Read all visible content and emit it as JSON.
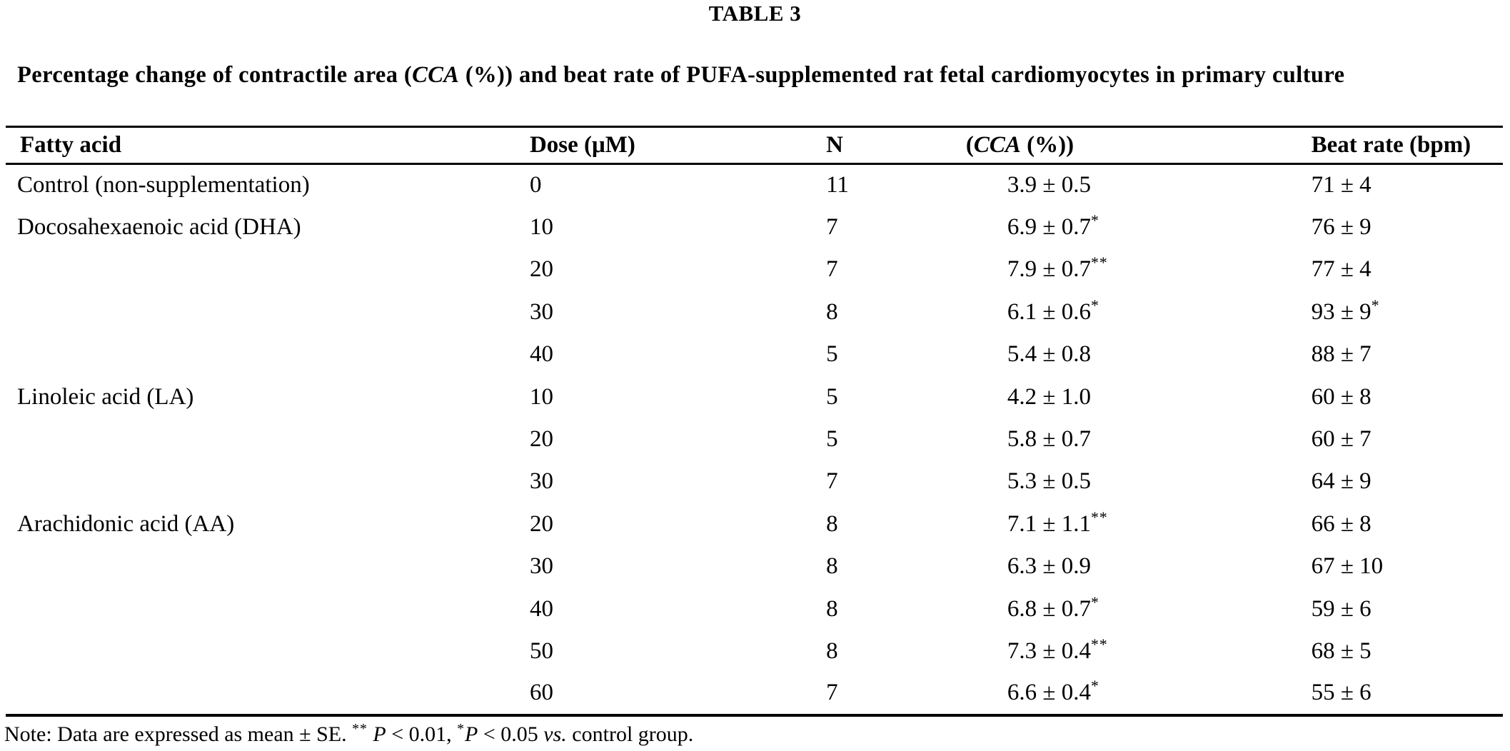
{
  "page": {
    "table_label": "TABLE 3",
    "caption": {
      "part1": "Percentage change of contractile area (",
      "abbr_italic": "CCA",
      "part2": " (%)) and beat rate of PUFA-supplemented rat fetal cardiomyocytes in primary culture"
    }
  },
  "table": {
    "headers": {
      "fatty_acid": "Fatty acid",
      "dose": "Dose (μM)",
      "n": "N",
      "cca_pre": "(",
      "cca_italic": "CCA",
      "cca_post": " (%))",
      "beat_rate": "Beat rate (bpm)"
    },
    "rows": [
      {
        "fatty_acid": "Control (non-supplementation)",
        "dose": "0",
        "n": "11",
        "cca": "3.9 ± 0.5",
        "cca_sup": "",
        "beat_rate": "71 ± 4",
        "beat_rate_sup": ""
      },
      {
        "fatty_acid": "Docosahexaenoic acid (DHA)",
        "dose": "10",
        "n": "7",
        "cca": "6.9 ± 0.7",
        "cca_sup": "*",
        "beat_rate": "76 ± 9",
        "beat_rate_sup": ""
      },
      {
        "fatty_acid": "",
        "dose": "20",
        "n": "7",
        "cca": "7.9 ± 0.7",
        "cca_sup": "**",
        "beat_rate": "77 ± 4",
        "beat_rate_sup": ""
      },
      {
        "fatty_acid": "",
        "dose": "30",
        "n": "8",
        "cca": "6.1 ± 0.6",
        "cca_sup": "*",
        "beat_rate": "93 ± 9",
        "beat_rate_sup": "*"
      },
      {
        "fatty_acid": "",
        "dose": "40",
        "n": "5",
        "cca": "5.4 ± 0.8",
        "cca_sup": "",
        "beat_rate": "88 ± 7",
        "beat_rate_sup": ""
      },
      {
        "fatty_acid": "Linoleic acid (LA)",
        "dose": "10",
        "n": "5",
        "cca": "4.2 ± 1.0",
        "cca_sup": "",
        "beat_rate": "60 ± 8",
        "beat_rate_sup": ""
      },
      {
        "fatty_acid": "",
        "dose": "20",
        "n": "5",
        "cca": "5.8 ± 0.7",
        "cca_sup": "",
        "beat_rate": "60 ± 7",
        "beat_rate_sup": ""
      },
      {
        "fatty_acid": "",
        "dose": "30",
        "n": "7",
        "cca": "5.3 ± 0.5",
        "cca_sup": "",
        "beat_rate": "64 ± 9",
        "beat_rate_sup": ""
      },
      {
        "fatty_acid": "Arachidonic acid (AA)",
        "dose": "20",
        "n": "8",
        "cca": "7.1 ± 1.1",
        "cca_sup": "**",
        "beat_rate": "66 ± 8",
        "beat_rate_sup": ""
      },
      {
        "fatty_acid": "",
        "dose": "30",
        "n": "8",
        "cca": "6.3 ± 0.9",
        "cca_sup": "",
        "beat_rate": "67 ± 10",
        "beat_rate_sup": ""
      },
      {
        "fatty_acid": "",
        "dose": "40",
        "n": "8",
        "cca": "6.8 ± 0.7",
        "cca_sup": "*",
        "beat_rate": "59 ± 6",
        "beat_rate_sup": ""
      },
      {
        "fatty_acid": "",
        "dose": "50",
        "n": "8",
        "cca": "7.3 ± 0.4",
        "cca_sup": "**",
        "beat_rate": "68 ± 5",
        "beat_rate_sup": ""
      },
      {
        "fatty_acid": "",
        "dose": "60",
        "n": "7",
        "cca": "6.6 ± 0.4",
        "cca_sup": "*",
        "beat_rate": "55 ± 6",
        "beat_rate_sup": ""
      }
    ]
  },
  "note": {
    "prefix": "Note: Data are expressed as mean ± SE. ",
    "sig_double": "**",
    "space": " ",
    "p1": "P",
    "mid1": " < 0.01, ",
    "sig_single": "*",
    "p2": "P",
    "mid2": " < 0.05 ",
    "vs": "vs.",
    "suffix": " control group."
  },
  "colors": {
    "background": "#ffffff",
    "text": "#000000",
    "rule": "#000000"
  }
}
